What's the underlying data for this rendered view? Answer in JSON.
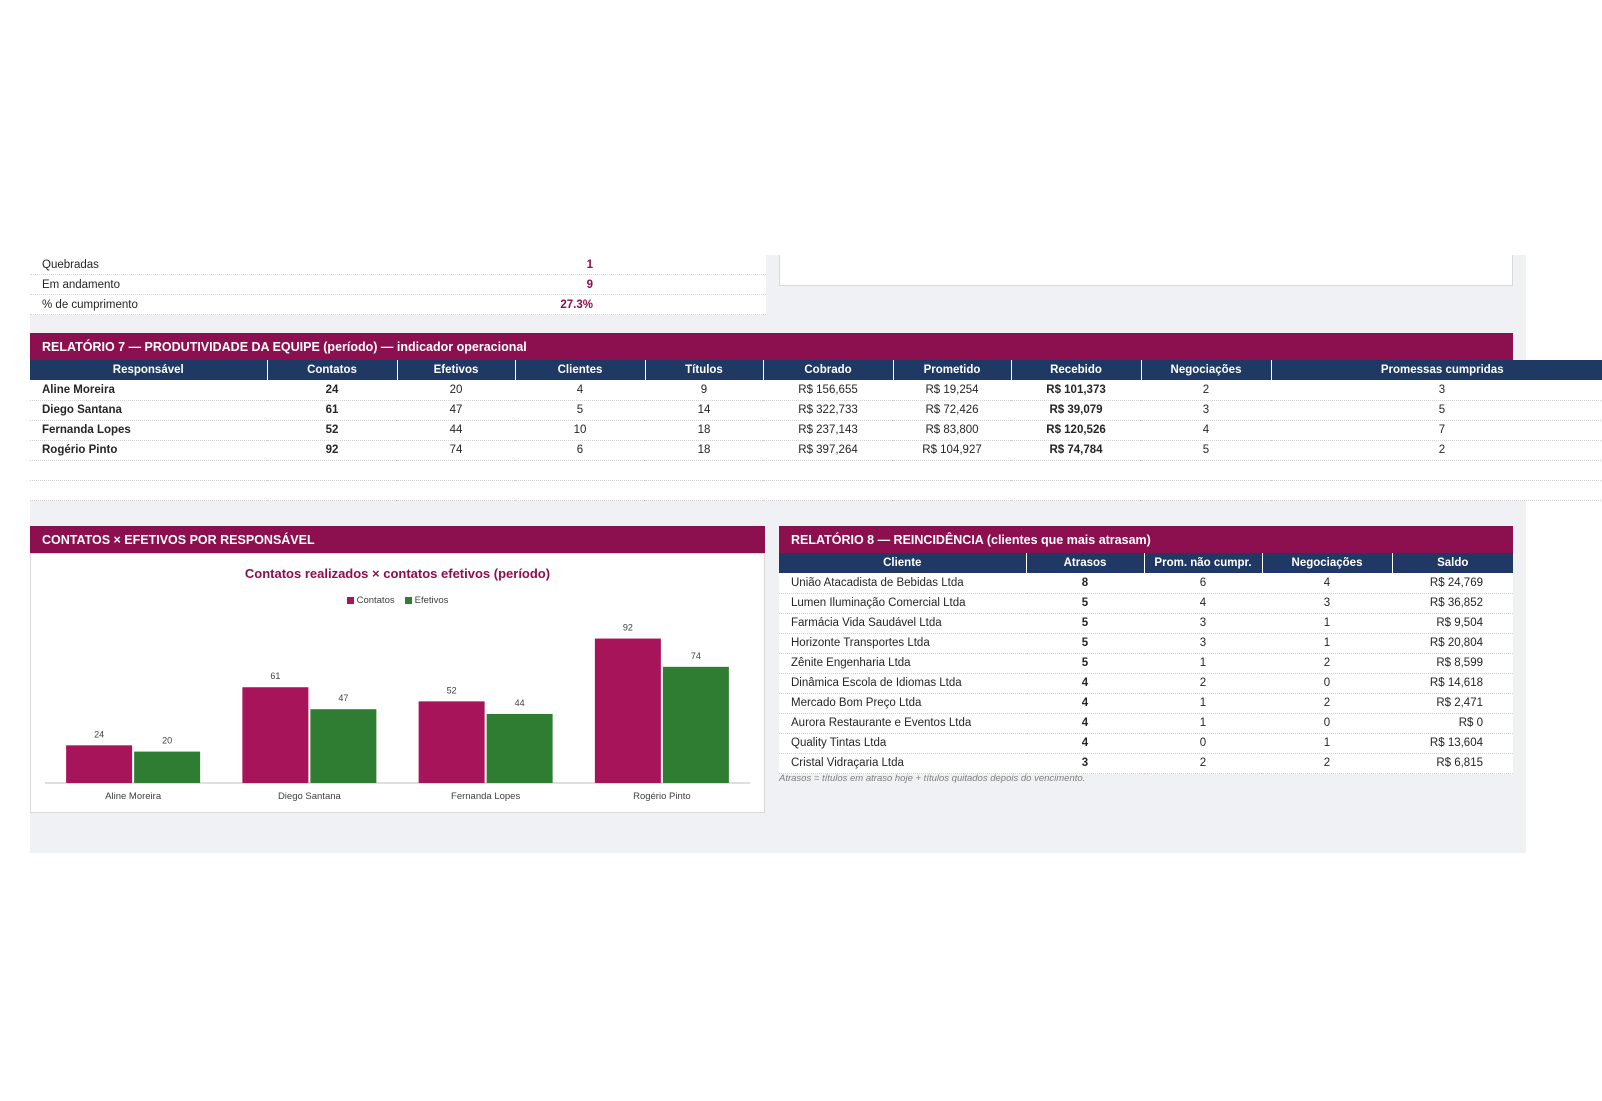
{
  "summary": {
    "rows": [
      {
        "label": "Quebradas",
        "value": "1"
      },
      {
        "label": "Em andamento",
        "value": "9"
      },
      {
        "label": "% de cumprimento",
        "value": "27.3%"
      }
    ]
  },
  "report7": {
    "title": "RELATÓRIO 7 — PRODUTIVIDADE DA EQUIPE (período) — indicador operacional",
    "headers": [
      "Responsável",
      "Contatos",
      "Efetivos",
      "Clientes",
      "Títulos",
      "Cobrado",
      "Prometido",
      "Recebido",
      "Negociações",
      "Promessas cumpridas"
    ],
    "rows": [
      [
        "Aline Moreira",
        "24",
        "20",
        "4",
        "9",
        "R$ 156,655",
        "R$ 19,254",
        "R$ 101,373",
        "2",
        "3"
      ],
      [
        "Diego Santana",
        "61",
        "47",
        "5",
        "14",
        "R$ 322,733",
        "R$ 72,426",
        "R$ 39,079",
        "3",
        "5"
      ],
      [
        "Fernanda Lopes",
        "52",
        "44",
        "10",
        "18",
        "R$ 237,143",
        "R$ 83,800",
        "R$ 120,526",
        "4",
        "7"
      ],
      [
        "Rogério Pinto",
        "92",
        "74",
        "6",
        "18",
        "R$ 397,264",
        "R$ 104,927",
        "R$ 74,784",
        "5",
        "2"
      ]
    ]
  },
  "chart_section": {
    "title": "CONTATOS × EFETIVOS POR RESPONSÁVEL"
  },
  "chart_data": {
    "type": "bar",
    "title": "Contatos realizados × contatos efetivos (período)",
    "categories": [
      "Aline Moreira",
      "Diego Santana",
      "Fernanda Lopes",
      "Rogério Pinto"
    ],
    "series": [
      {
        "name": "Contatos",
        "values": [
          24,
          61,
          52,
          92
        ],
        "color": "#a8145a"
      },
      {
        "name": "Efetivos",
        "values": [
          20,
          47,
          44,
          74
        ],
        "color": "#2e7d32"
      }
    ],
    "ylim": [
      0,
      100
    ],
    "grid": false,
    "legend": "top",
    "data_labels": true
  },
  "report8": {
    "title": "RELATÓRIO 8 — REINCIDÊNCIA (clientes que mais atrasam)",
    "headers": [
      "Cliente",
      "Atrasos",
      "Prom. não cumpr.",
      "Negociações",
      "Saldo"
    ],
    "rows": [
      [
        "União Atacadista de Bebidas Ltda",
        "8",
        "6",
        "4",
        "R$ 24,769"
      ],
      [
        "Lumen Iluminação Comercial Ltda",
        "5",
        "4",
        "3",
        "R$ 36,852"
      ],
      [
        "Farmácia Vida Saudável Ltda",
        "5",
        "3",
        "1",
        "R$ 9,504"
      ],
      [
        "Horizonte Transportes Ltda",
        "5",
        "3",
        "1",
        "R$ 20,804"
      ],
      [
        "Zênite Engenharia Ltda",
        "5",
        "1",
        "2",
        "R$ 8,599"
      ],
      [
        "Dinâmica Escola de Idiomas Ltda",
        "4",
        "2",
        "0",
        "R$ 14,618"
      ],
      [
        "Mercado Bom Preço Ltda",
        "4",
        "1",
        "2",
        "R$ 2,471"
      ],
      [
        "Aurora Restaurante e Eventos Ltda",
        "4",
        "1",
        "0",
        "R$ 0"
      ],
      [
        "Quality Tintas Ltda",
        "4",
        "0",
        "1",
        "R$ 13,604"
      ],
      [
        "Cristal Vidraçaria Ltda",
        "3",
        "2",
        "2",
        "R$ 6,815"
      ]
    ],
    "footnote": "Atrasos = títulos em atraso hoje + títulos quitados depois do vencimento."
  },
  "colors": {
    "header_bar": "#8c0f4f",
    "table_header": "#1f3864",
    "accent_value": "#8b0e4e",
    "sheet_background": "#f0f1f5"
  }
}
